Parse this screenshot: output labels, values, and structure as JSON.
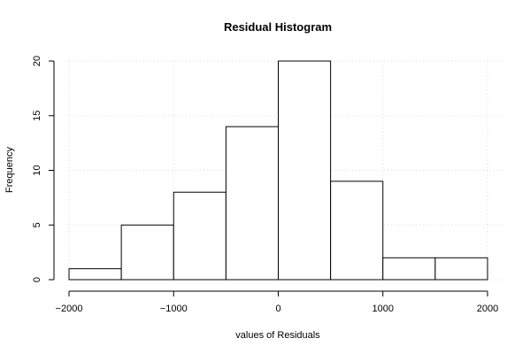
{
  "chart_data": {
    "type": "bar",
    "title": "Residual Histogram",
    "xlabel": "values of Residuals",
    "ylabel": "Frequency",
    "bins": [
      {
        "from": -2000,
        "to": -1500,
        "count": 1
      },
      {
        "from": -1500,
        "to": -1000,
        "count": 5
      },
      {
        "from": -1000,
        "to": -500,
        "count": 8
      },
      {
        "from": -500,
        "to": 0,
        "count": 14
      },
      {
        "from": 0,
        "to": 500,
        "count": 20
      },
      {
        "from": 500,
        "to": 1000,
        "count": 9
      },
      {
        "from": 1000,
        "to": 1500,
        "count": 2
      },
      {
        "from": 1500,
        "to": 2000,
        "count": 2
      }
    ],
    "xlim": [
      -2000,
      2000
    ],
    "ylim": [
      0,
      20
    ],
    "x_ticks": [
      -2000,
      -1000,
      0,
      1000,
      2000
    ],
    "x_tick_labels": [
      "−2000",
      "−1000",
      "0",
      "1000",
      "2000"
    ],
    "y_ticks": [
      0,
      5,
      10,
      15,
      20
    ],
    "y_tick_labels": [
      "0",
      "5",
      "10",
      "15",
      "20"
    ],
    "grid": true
  }
}
